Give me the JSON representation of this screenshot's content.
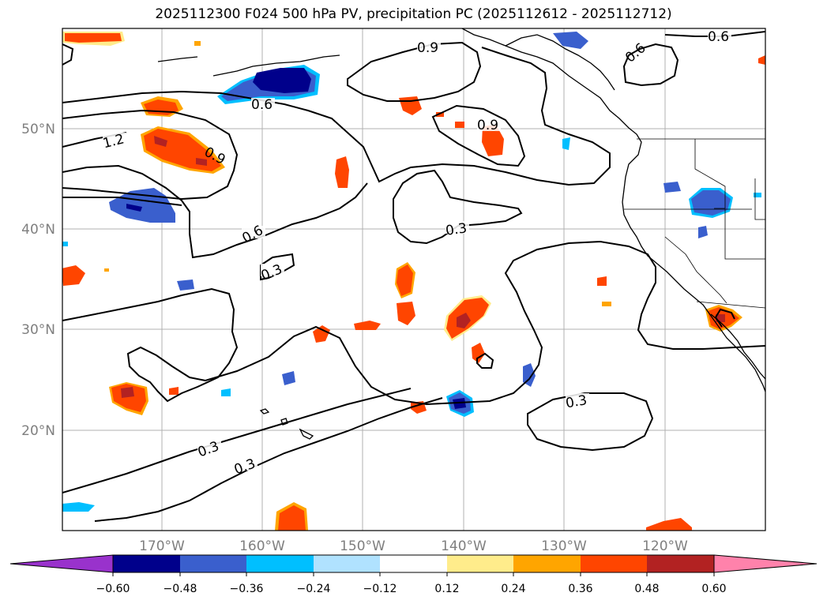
{
  "title": "2025112300 F024 500 hPa PV, precipitation PC (2025112612 - 2025112712)",
  "map": {
    "lat_labels": [
      "50°N",
      "40°N",
      "30°N",
      "20°N"
    ],
    "lon_labels": [
      "170°W",
      "160°W",
      "150°W",
      "140°W",
      "130°W",
      "120°W"
    ],
    "contour_labels": [
      "0.6",
      "0.9",
      "0.6",
      "1.2",
      "0.9",
      "0.9",
      "0.6",
      "0.6",
      "0.3",
      "0.3",
      "0.3",
      "0.3",
      "0.3"
    ]
  },
  "colorbar": {
    "ticks": [
      "−0.60",
      "−0.48",
      "−0.36",
      "−0.24",
      "−0.12",
      "0.12",
      "0.24",
      "0.36",
      "0.48",
      "0.60"
    ],
    "colors": [
      "#9932cc",
      "#00008b",
      "#3a5fcd",
      "#00bfff",
      "#b0e2ff",
      "#ffffff",
      "#ffec8b",
      "#ffa500",
      "#ff4500",
      "#b22222",
      "#ff82ab"
    ]
  },
  "shading_colors": {
    "strong_negative": "#00008b",
    "negative": "#3a5fcd",
    "weak_negative": "#00bfff",
    "weak_positive": "#ffec8b",
    "positive": "#ffa500",
    "strong_positive": "#ff4500",
    "very_strong_positive": "#b22222"
  }
}
